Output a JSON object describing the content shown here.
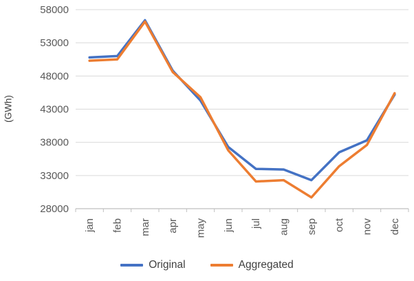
{
  "chart_data": {
    "type": "line",
    "title": "",
    "xlabel": "",
    "ylabel": "(GWh)",
    "ylim": [
      28000,
      58000
    ],
    "ytick_step": 5000,
    "grid": true,
    "legend_position": "bottom",
    "grid_color": "#D9D9D9",
    "axis_color": "#BFBFBF",
    "text_color": "#595959",
    "categories": [
      "jan",
      "feb",
      "mar",
      "apr",
      "may",
      "jun",
      "jul",
      "aug",
      "sep",
      "oct",
      "nov",
      "dec"
    ],
    "series": [
      {
        "name": "Original",
        "color": "#4472C4",
        "values": [
          50800,
          51000,
          56400,
          48800,
          44300,
          37300,
          34000,
          33900,
          32300,
          36500,
          38300,
          45200
        ]
      },
      {
        "name": "Aggregated",
        "color": "#ED7D31",
        "values": [
          50300,
          50500,
          56200,
          48600,
          44800,
          36800,
          32100,
          32300,
          29700,
          34400,
          37600,
          45400
        ]
      }
    ]
  }
}
